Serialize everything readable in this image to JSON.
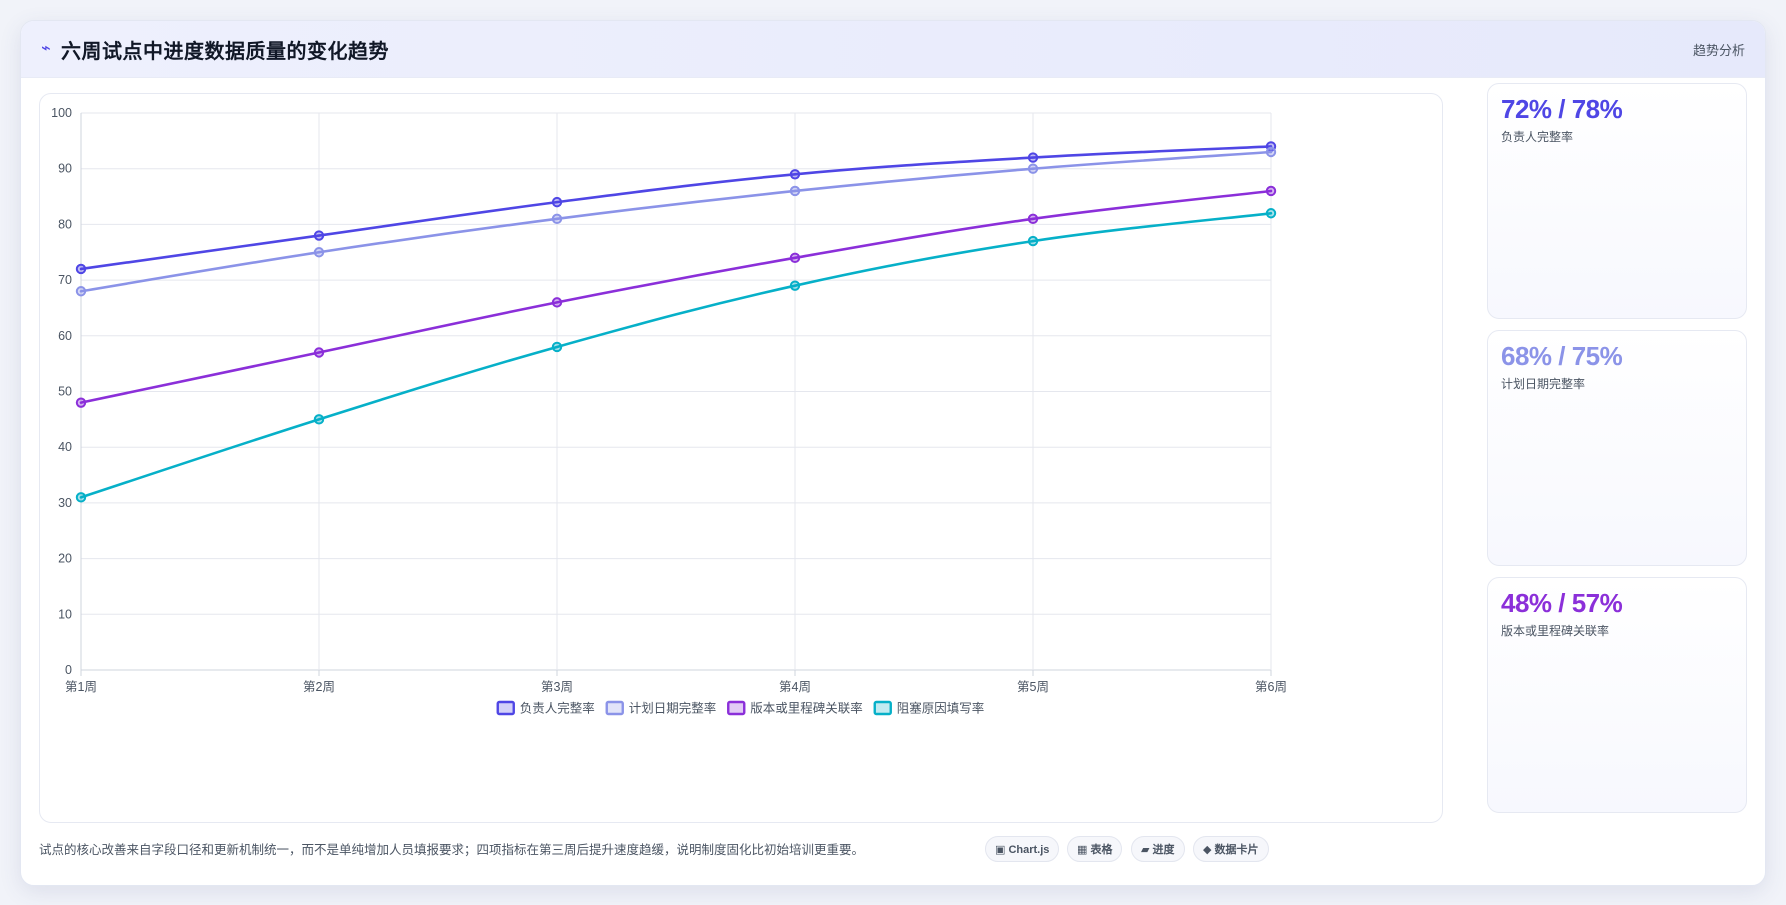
{
  "header": {
    "logo_glyph": "⌁",
    "title": "六周试点中进度数据质量的变化趋势",
    "tag": "趋势分析"
  },
  "stats": [
    {
      "value": "72% / 78%",
      "label": "负责人完整率",
      "color": "#4f46e5"
    },
    {
      "value": "68% / 75%",
      "label": "计划日期完整率",
      "color": "#8b93e8"
    },
    {
      "value": "48% / 57%",
      "label": "版本或里程碑关联率",
      "color": "#8b2fd9"
    }
  ],
  "footer": {
    "note": "试点的核心改善来自字段口径和更新机制统一，而不是单纯增加人员填报要求；四项指标在第三周后提升速度趋缓，说明制度固化比初始培训更重要。",
    "chips": [
      "▣ Chart.js",
      "▦ 表格",
      "▰ 进度",
      "◆ 数据卡片"
    ]
  },
  "chart_data": {
    "type": "line",
    "categories": [
      "第1周",
      "第2周",
      "第3周",
      "第4周",
      "第5周",
      "第6周"
    ],
    "ylim": [
      0,
      100
    ],
    "yticks": [
      0,
      10,
      20,
      30,
      40,
      50,
      60,
      70,
      80,
      90,
      100
    ],
    "grid": true,
    "legend_position": "bottom",
    "series": [
      {
        "name": "负责人完整率",
        "color": "#4f46e5",
        "values": [
          72,
          78,
          84,
          89,
          92,
          94
        ]
      },
      {
        "name": "计划日期完整率",
        "color": "#8b93e8",
        "values": [
          68,
          75,
          81,
          86,
          90,
          93
        ]
      },
      {
        "name": "版本或里程碑关联率",
        "color": "#8b2fd9",
        "values": [
          48,
          57,
          66,
          74,
          81,
          86
        ]
      },
      {
        "name": "阻塞原因填写率",
        "color": "#06b0c8",
        "values": [
          31,
          45,
          58,
          69,
          77,
          82
        ]
      }
    ]
  }
}
